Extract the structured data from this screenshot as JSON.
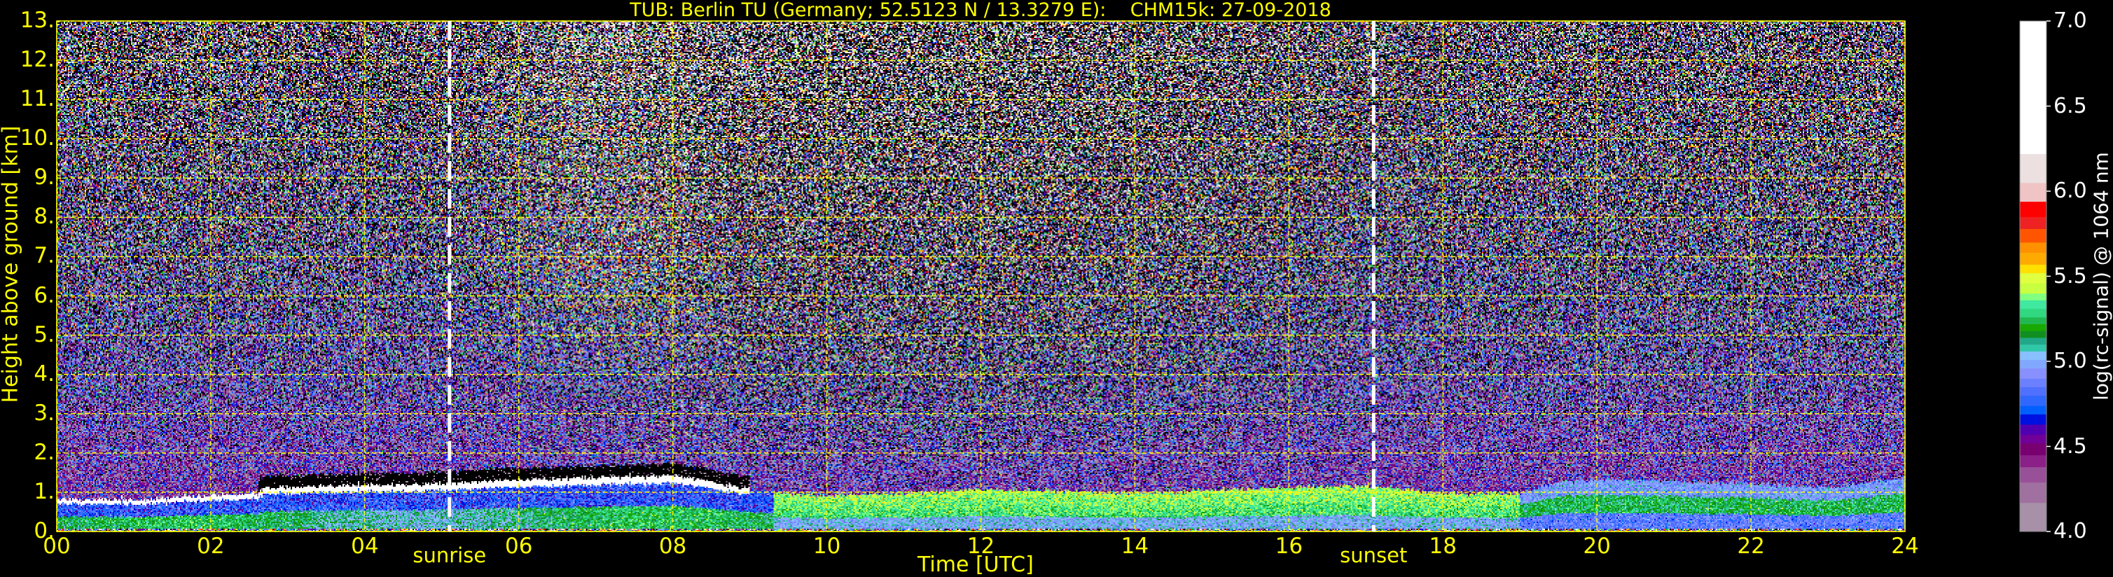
{
  "chart_data": {
    "type": "heatmap",
    "title": "TUB: Berlin TU (Germany; 52.5123 N / 13.3279 E):    CHM15k: 27-09-2018",
    "xlabel": "Time [UTC]",
    "ylabel": "Height above ground [km]",
    "xlim": [
      0,
      24
    ],
    "ylim": [
      0,
      13
    ],
    "xticks": [
      0,
      2,
      4,
      6,
      8,
      10,
      12,
      14,
      16,
      18,
      20,
      22,
      24
    ],
    "xtick_labels": [
      "00",
      "02",
      "04",
      "06",
      "08",
      "10",
      "12",
      "14",
      "16",
      "18",
      "20",
      "22",
      "24"
    ],
    "yticks": [
      0,
      1,
      2,
      3,
      4,
      5,
      6,
      7,
      8,
      9,
      10,
      11,
      12,
      13
    ],
    "ytick_labels": [
      "0.",
      "1.",
      "2.",
      "3.",
      "4.",
      "5.",
      "6.",
      "7.",
      "8.",
      "9.",
      "10.",
      "11.",
      "12.",
      "13."
    ],
    "grid": true,
    "grid_color": "#ffff00",
    "markers": [
      {
        "label": "sunrise",
        "hour": 5.1
      },
      {
        "label": "sunset",
        "hour": 17.1
      }
    ],
    "colorbar": {
      "label": "log(rc-signal) @ 1064 nm",
      "clim": [
        4.0,
        7.0
      ],
      "ticks": [
        4.0,
        4.5,
        5.0,
        5.5,
        6.0,
        6.5,
        7.0
      ],
      "tick_labels": [
        "4.0",
        "4.5",
        "5.0",
        "5.5",
        "6.0",
        "6.5",
        "7.0"
      ],
      "position": "right"
    },
    "colormap": [
      {
        "min": 4.0,
        "max": 4.17,
        "color": "#a890a8"
      },
      {
        "min": 4.17,
        "max": 4.29,
        "color": "#a070a0"
      },
      {
        "min": 4.29,
        "max": 4.38,
        "color": "#985098"
      },
      {
        "min": 4.38,
        "max": 4.45,
        "color": "#8a2088"
      },
      {
        "min": 4.45,
        "max": 4.52,
        "color": "#780070"
      },
      {
        "min": 4.52,
        "max": 4.57,
        "color": "#700098"
      },
      {
        "min": 4.57,
        "max": 4.63,
        "color": "#5000b0"
      },
      {
        "min": 4.63,
        "max": 4.69,
        "color": "#0010e0"
      },
      {
        "min": 4.69,
        "max": 4.74,
        "color": "#0060ff"
      },
      {
        "min": 4.74,
        "max": 4.8,
        "color": "#3068ff"
      },
      {
        "min": 4.8,
        "max": 4.85,
        "color": "#5070ff"
      },
      {
        "min": 4.85,
        "max": 4.9,
        "color": "#6a80ff"
      },
      {
        "min": 4.9,
        "max": 4.96,
        "color": "#8890ff"
      },
      {
        "min": 4.96,
        "max": 5.01,
        "color": "#80a8ff"
      },
      {
        "min": 5.01,
        "max": 5.06,
        "color": "#88c0ff"
      },
      {
        "min": 5.06,
        "max": 5.1,
        "color": "#30c8a8"
      },
      {
        "min": 5.1,
        "max": 5.14,
        "color": "#20a888"
      },
      {
        "min": 5.14,
        "max": 5.18,
        "color": "#108f20"
      },
      {
        "min": 5.18,
        "max": 5.22,
        "color": "#18a800"
      },
      {
        "min": 5.22,
        "max": 5.26,
        "color": "#20b850"
      },
      {
        "min": 5.26,
        "max": 5.31,
        "color": "#30d880"
      },
      {
        "min": 5.31,
        "max": 5.36,
        "color": "#40e8a0"
      },
      {
        "min": 5.36,
        "max": 5.4,
        "color": "#80ff80"
      },
      {
        "min": 5.4,
        "max": 5.46,
        "color": "#c8ff40"
      },
      {
        "min": 5.46,
        "max": 5.52,
        "color": "#e0ff40"
      },
      {
        "min": 5.52,
        "max": 5.57,
        "color": "#ffe000"
      },
      {
        "min": 5.57,
        "max": 5.64,
        "color": "#ffaa00"
      },
      {
        "min": 5.64,
        "max": 5.7,
        "color": "#ff9000"
      },
      {
        "min": 5.7,
        "max": 5.78,
        "color": "#ff5500"
      },
      {
        "min": 5.78,
        "max": 5.85,
        "color": "#ee2222"
      },
      {
        "min": 5.85,
        "max": 5.94,
        "color": "#ff0000"
      },
      {
        "min": 5.94,
        "max": 6.05,
        "color": "#f0c4c4"
      },
      {
        "min": 6.05,
        "max": 6.22,
        "color": "#ece0e0"
      },
      {
        "min": 6.22,
        "max": 7.0,
        "color": "#ffffff"
      }
    ],
    "aerosol_layer_top_km": {
      "hour": [
        0,
        1,
        2,
        2.6,
        2.7,
        4,
        5,
        6,
        7,
        8,
        8.5,
        9,
        9.5,
        10,
        11,
        12,
        13,
        14,
        16,
        17,
        18,
        19,
        19.5,
        20,
        21,
        22,
        23,
        24
      ],
      "height": [
        0.8,
        0.78,
        0.9,
        0.95,
        1.1,
        1.15,
        1.2,
        1.3,
        1.35,
        1.4,
        1.25,
        1.05,
        0.95,
        0.9,
        0.95,
        1.05,
        1.0,
        0.95,
        1.1,
        1.15,
        0.95,
        0.95,
        1.25,
        1.3,
        1.25,
        1.2,
        1.1,
        1.35
      ]
    }
  }
}
